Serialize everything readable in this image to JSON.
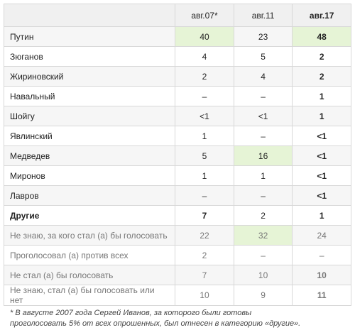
{
  "table": {
    "header": [
      "авг.07*",
      "авг.11",
      "авг.17"
    ],
    "rows": [
      [
        "Путин",
        40,
        23,
        48
      ],
      [
        "Зюганов",
        4,
        5,
        2
      ],
      [
        "Жириновский",
        2,
        4,
        2
      ],
      [
        "Навальный",
        "–",
        "–",
        1
      ],
      [
        "Шойгу",
        "<1",
        "<1",
        1
      ],
      [
        "Явлинский",
        1,
        "–",
        "<1"
      ],
      [
        "Медведев",
        5,
        16,
        "<1"
      ],
      [
        "Миронов",
        1,
        1,
        "<1"
      ],
      [
        "Лавров",
        "–",
        "–",
        "<1"
      ],
      [
        "Другие",
        7,
        2,
        1
      ],
      [
        "Не знаю, за кого стал (а) бы голосовать",
        22,
        32,
        24
      ],
      [
        "Проголосовал (а) против всех",
        2,
        "–",
        "–"
      ],
      [
        "Не стал (а) бы голосовать",
        7,
        10,
        10
      ],
      [
        "Не знаю, стал (а) бы голосовать или нет",
        10,
        9,
        11
      ]
    ]
  },
  "footnote": [
    "* В августе 2007 года Сергей Иванов, за которого были готовы",
    "проголосовать 5% от всех опрошенных, был отнесен в категорию «другие»."
  ]
}
